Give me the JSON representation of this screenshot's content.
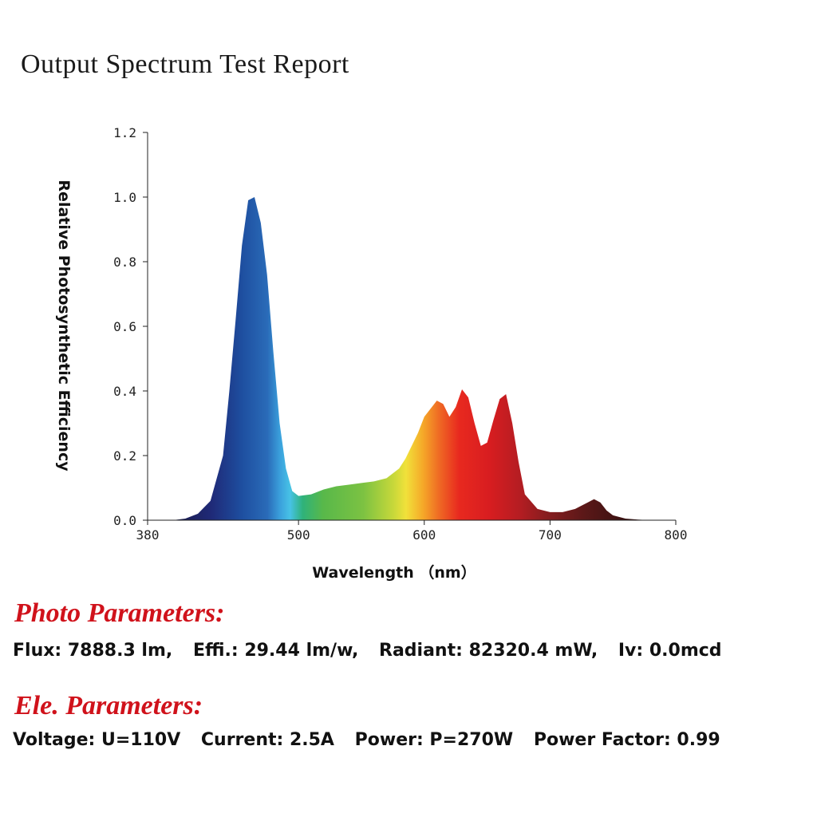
{
  "title": "Output Spectrum Test Report",
  "accent_color": "#d0121b",
  "chart_data": {
    "type": "area",
    "xlabel": "Wavelength （nm）",
    "ylabel": "Relative Photosynthetic Efficiency",
    "xlim": [
      380,
      800
    ],
    "ylim": [
      0,
      1.2
    ],
    "xticks": [
      380,
      500,
      600,
      700,
      800
    ],
    "yticks": [
      0.0,
      0.2,
      0.4,
      0.6,
      0.8,
      1.0,
      1.2
    ],
    "ytick_labels": [
      "0.0",
      "0.2",
      "0.4",
      "0.6",
      "0.8",
      "1.0",
      "1.2"
    ],
    "fill": "wavelength color gradient",
    "x": [
      380,
      400,
      410,
      420,
      430,
      440,
      445,
      450,
      455,
      460,
      465,
      470,
      475,
      480,
      485,
      490,
      495,
      500,
      510,
      520,
      530,
      540,
      550,
      560,
      570,
      580,
      585,
      590,
      595,
      600,
      605,
      610,
      615,
      620,
      625,
      630,
      635,
      640,
      645,
      650,
      655,
      660,
      665,
      670,
      675,
      680,
      690,
      700,
      710,
      720,
      730,
      735,
      740,
      745,
      750,
      760,
      770,
      780,
      800
    ],
    "y": [
      0,
      0,
      0.005,
      0.02,
      0.06,
      0.2,
      0.4,
      0.62,
      0.85,
      0.99,
      1.0,
      0.92,
      0.76,
      0.52,
      0.3,
      0.16,
      0.09,
      0.075,
      0.08,
      0.095,
      0.105,
      0.11,
      0.115,
      0.12,
      0.13,
      0.16,
      0.19,
      0.23,
      0.27,
      0.32,
      0.345,
      0.37,
      0.36,
      0.32,
      0.35,
      0.405,
      0.38,
      0.3,
      0.23,
      0.24,
      0.31,
      0.375,
      0.39,
      0.3,
      0.18,
      0.08,
      0.035,
      0.025,
      0.025,
      0.035,
      0.055,
      0.065,
      0.055,
      0.03,
      0.015,
      0.005,
      0.002,
      0,
      0
    ]
  },
  "photo": {
    "heading": "Photo Parameters:",
    "items": [
      "Flux: 7888.3 lm,",
      "Effi.: 29.44 lm/w,",
      "Radiant: 82320.4 mW,",
      "Iv: 0.0mcd"
    ]
  },
  "ele": {
    "heading": "Ele. Parameters:",
    "items": [
      "Voltage: U=110V",
      "Current: 2.5A",
      "Power: P=270W",
      "Power Factor: 0.99"
    ]
  }
}
